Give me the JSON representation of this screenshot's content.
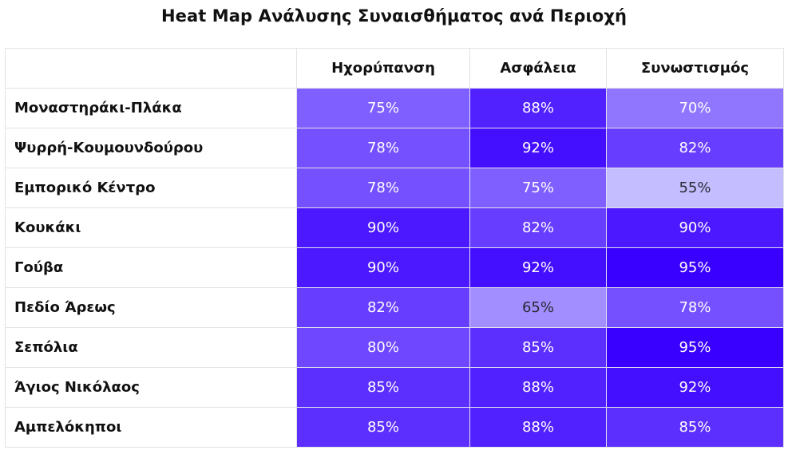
{
  "chart_data": {
    "type": "heatmap",
    "title": "Heat Map Ανάλυσης Συναισθήματος ανά Περιοχή",
    "columns": [
      "Ηχορύπανση",
      "Ασφάλεια",
      "Συνωστισμός"
    ],
    "rows": [
      "Μοναστηράκι-Πλάκα",
      "Ψυρρή-Κουμουνδούρου",
      "Εμπορικό Κέντρο",
      "Κουκάκι",
      "Γούβα",
      "Πεδίο Άρεως",
      "Σεπόλια",
      "Άγιος Νικόλαος",
      "Αμπελόκηποι"
    ],
    "values": [
      [
        75,
        88,
        70
      ],
      [
        78,
        92,
        82
      ],
      [
        78,
        75,
        55
      ],
      [
        90,
        82,
        90
      ],
      [
        90,
        92,
        95
      ],
      [
        82,
        65,
        78
      ],
      [
        80,
        85,
        95
      ],
      [
        85,
        88,
        92
      ],
      [
        85,
        88,
        85
      ]
    ],
    "value_suffix": "%",
    "color_scale": {
      "low": "#c4bdff",
      "high": "#3a00ff"
    }
  }
}
